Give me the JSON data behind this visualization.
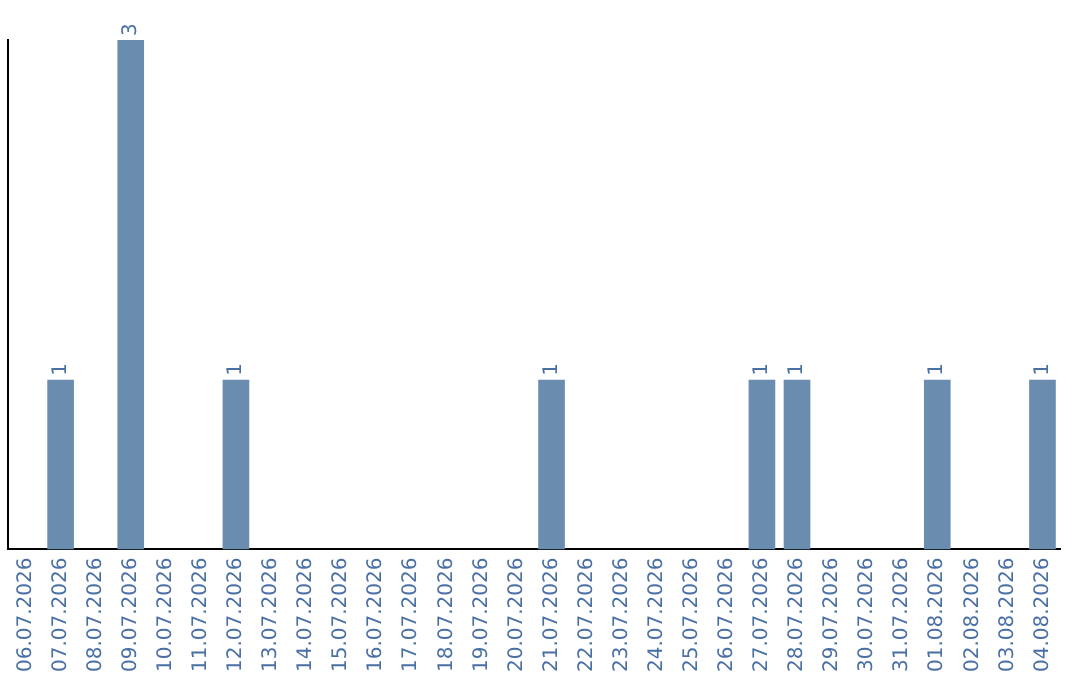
{
  "chart_data": {
    "type": "bar",
    "categories": [
      "06.07.2026",
      "07.07.2026",
      "08.07.2026",
      "09.07.2026",
      "10.07.2026",
      "11.07.2026",
      "12.07.2026",
      "13.07.2026",
      "14.07.2026",
      "15.07.2026",
      "16.07.2026",
      "17.07.2026",
      "18.07.2026",
      "19.07.2026",
      "20.07.2026",
      "21.07.2026",
      "22.07.2026",
      "23.07.2026",
      "24.07.2026",
      "25.07.2026",
      "26.07.2026",
      "27.07.2026",
      "28.07.2026",
      "29.07.2026",
      "30.07.2026",
      "31.07.2026",
      "01.08.2026",
      "02.08.2026",
      "03.08.2026",
      "04.08.2026"
    ],
    "values": [
      0,
      1,
      0,
      3,
      0,
      0,
      1,
      0,
      0,
      0,
      0,
      0,
      0,
      0,
      0,
      1,
      0,
      0,
      0,
      0,
      0,
      1,
      1,
      0,
      0,
      0,
      1,
      0,
      0,
      1
    ],
    "value_labels": [
      null,
      "1",
      null,
      "3",
      null,
      null,
      "1",
      null,
      null,
      null,
      null,
      null,
      null,
      null,
      null,
      "1",
      null,
      null,
      null,
      null,
      null,
      "1",
      "1",
      null,
      null,
      null,
      "1",
      null,
      null,
      "1"
    ],
    "color": "#6a8caf",
    "grid": false,
    "legend": false,
    "tick_labels": "x"
  }
}
